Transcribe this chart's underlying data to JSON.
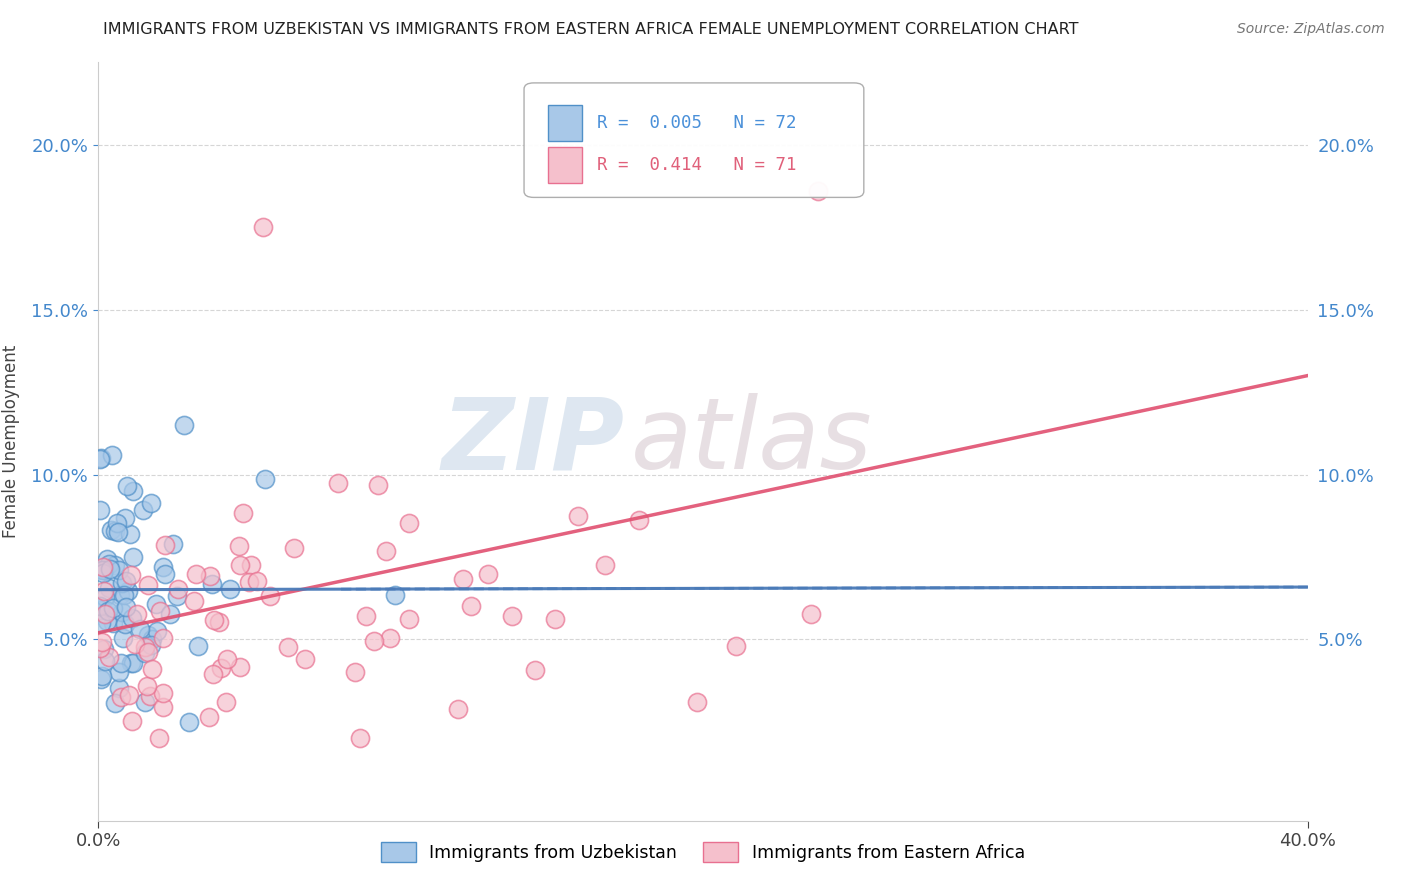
{
  "title": "IMMIGRANTS FROM UZBEKISTAN VS IMMIGRANTS FROM EASTERN AFRICA FEMALE UNEMPLOYMENT CORRELATION CHART",
  "source": "Source: ZipAtlas.com",
  "ylabel": "Female Unemployment",
  "xlim": [
    0.0,
    0.4
  ],
  "ylim": [
    -0.005,
    0.225
  ],
  "yticks": [
    0.05,
    0.1,
    0.15,
    0.2
  ],
  "ytick_labels": [
    "5.0%",
    "10.0%",
    "15.0%",
    "20.0%"
  ],
  "xticks": [
    0.0,
    0.4
  ],
  "xtick_labels": [
    "0.0%",
    "40.0%"
  ],
  "legend_entries": [
    {
      "label": "R =  0.005   N = 72",
      "color": "#4a90d9"
    },
    {
      "label": "R =  0.414   N = 71",
      "color": "#e0607a"
    }
  ],
  "uzbekistan_color": "#a8c8e8",
  "eastern_africa_color": "#f5c0cc",
  "uzbekistan_edge": "#5090c8",
  "eastern_africa_edge": "#e87090",
  "uzbekistan_R": 0.005,
  "uzbekistan_N": 72,
  "eastern_africa_R": 0.414,
  "eastern_africa_N": 71,
  "trend_uz_color": "#4a7ab8",
  "trend_ea_color": "#e05070",
  "background_color": "#ffffff",
  "grid_color": "#cccccc",
  "watermark_zip": "ZIP",
  "watermark_atlas": "atlas",
  "watermark_color_zip": "#c8d8e8",
  "watermark_color_atlas": "#d0c0c8"
}
